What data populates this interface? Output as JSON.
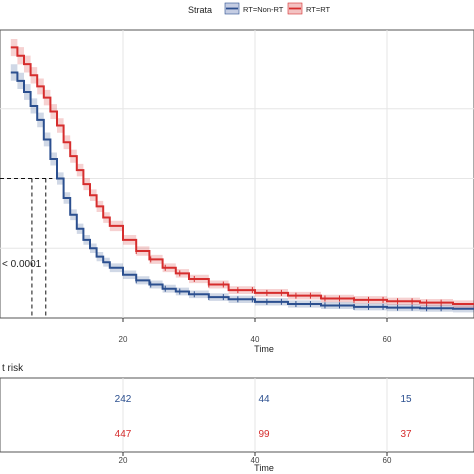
{
  "legend": {
    "title": "Strata",
    "entries": [
      "RT=Non-RT",
      "RT=RT"
    ]
  },
  "colors": {
    "non_rt": "#2b4f8f",
    "rt": "#d62d2d",
    "grid": "#e6e6e6",
    "axis": "#333333"
  },
  "pvalue_text": "< 0.0001",
  "risk_table": {
    "title": "t risk",
    "rows": [
      {
        "series": "RT=Non-RT",
        "values": [
          "242",
          "44",
          "15"
        ]
      },
      {
        "series": "RT=RT",
        "values": [
          "447",
          "99",
          "37"
        ]
      }
    ]
  },
  "chart_data": [
    {
      "type": "line",
      "step": "post",
      "xlabel": "Time",
      "xticks": [
        20,
        40,
        60
      ],
      "xlim": [
        3,
        70
      ],
      "ylim": [
        0,
        1
      ],
      "grid": true,
      "legend_placement": "top",
      "median_reference_lines": true,
      "series": [
        {
          "name": "RT=Non-RT",
          "x": [
            3,
            4,
            5,
            6,
            7,
            8,
            9,
            10,
            11,
            12,
            13,
            14,
            15,
            16,
            17,
            18,
            20,
            22,
            24,
            26,
            28,
            30,
            33,
            36,
            40,
            45,
            50,
            55,
            60,
            65,
            70
          ],
          "y": [
            0.88,
            0.85,
            0.81,
            0.76,
            0.71,
            0.64,
            0.57,
            0.5,
            0.43,
            0.37,
            0.32,
            0.28,
            0.25,
            0.22,
            0.2,
            0.18,
            0.155,
            0.135,
            0.12,
            0.105,
            0.095,
            0.085,
            0.075,
            0.067,
            0.058,
            0.05,
            0.045,
            0.04,
            0.037,
            0.035,
            0.033
          ]
        },
        {
          "name": "RT=RT",
          "x": [
            3,
            4,
            5,
            6,
            7,
            8,
            9,
            10,
            11,
            12,
            13,
            14,
            15,
            16,
            17,
            18,
            20,
            22,
            24,
            26,
            28,
            30,
            33,
            36,
            40,
            45,
            50,
            55,
            60,
            65,
            70
          ],
          "y": [
            0.97,
            0.94,
            0.91,
            0.87,
            0.83,
            0.79,
            0.74,
            0.69,
            0.63,
            0.58,
            0.53,
            0.48,
            0.44,
            0.4,
            0.36,
            0.33,
            0.28,
            0.24,
            0.21,
            0.18,
            0.16,
            0.14,
            0.12,
            0.1,
            0.09,
            0.08,
            0.07,
            0.065,
            0.06,
            0.055,
            0.05
          ]
        }
      ]
    },
    {
      "type": "table",
      "title": "t risk",
      "xlabel": "Time",
      "xticks": [
        20,
        40,
        60
      ],
      "columns_at_time": [
        20,
        40,
        60
      ],
      "rows": [
        {
          "name": "RT=Non-RT",
          "values": [
            242,
            44,
            15
          ]
        },
        {
          "name": "RT=RT",
          "values": [
            447,
            99,
            37
          ]
        }
      ]
    }
  ]
}
